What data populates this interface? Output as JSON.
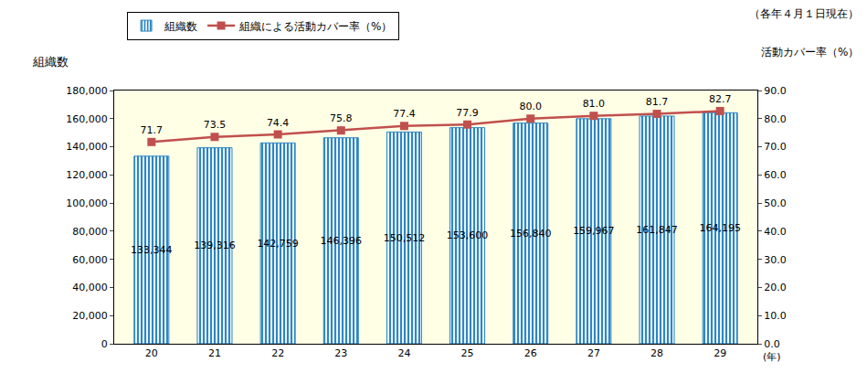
{
  "chart_data": {
    "type": "bar",
    "subtitle": "（各年４月１日現在）",
    "xlabel": "(年)",
    "ylabel": "組織数",
    "y2label": "活動カバー率（%）",
    "categories": [
      "20",
      "21",
      "22",
      "23",
      "24",
      "25",
      "26",
      "27",
      "28",
      "29"
    ],
    "series": [
      {
        "name": "組織数",
        "type": "bar",
        "color": "#2e86c1",
        "values": [
          133344,
          139316,
          142759,
          146396,
          150512,
          153600,
          156840,
          159967,
          161847,
          164195
        ],
        "value_labels": [
          "133,344",
          "139,316",
          "142,759",
          "146,396",
          "150,512",
          "153,600",
          "156,840",
          "159,967",
          "161,847",
          "164,195"
        ]
      },
      {
        "name": "組織による活動カバー率（%）",
        "type": "line",
        "axis": "y2",
        "color": "#c0504d",
        "marker": "square",
        "values": [
          71.7,
          73.5,
          74.4,
          75.8,
          77.4,
          77.9,
          80.0,
          81.0,
          81.7,
          82.7
        ],
        "value_labels": [
          "71.7",
          "73.5",
          "74.4",
          "75.8",
          "77.4",
          "77.9",
          "80.0",
          "81.0",
          "81.7",
          "82.7"
        ]
      }
    ],
    "ylim": [
      0,
      180000
    ],
    "yticks": [
      0,
      {
        "value": 20000,
        "label": "20,000"
      },
      {
        "value": 40000,
        "label": "40,000"
      },
      {
        "value": 60000,
        "label": "60,000"
      },
      {
        "value": 80000,
        "label": "80,000"
      },
      {
        "value": 100000,
        "label": "100,000"
      },
      {
        "value": 120000,
        "label": "120,000"
      },
      {
        "value": 140000,
        "label": "140,000"
      },
      {
        "value": 160000,
        "label": "160,000"
      },
      {
        "value": 180000,
        "label": "180,000"
      }
    ],
    "y2lim": [
      0,
      90
    ],
    "y2ticks": [
      {
        "value": 0,
        "label": "0.0"
      },
      {
        "value": 10,
        "label": "10.0"
      },
      {
        "value": 20,
        "label": "20.0"
      },
      {
        "value": 30,
        "label": "30.0"
      },
      {
        "value": 40,
        "label": "40.0"
      },
      {
        "value": 50,
        "label": "50.0"
      },
      {
        "value": 60,
        "label": "60.0"
      },
      {
        "value": 70,
        "label": "70.0"
      },
      {
        "value": 80,
        "label": "80.0"
      },
      {
        "value": 90,
        "label": "90.0"
      }
    ],
    "grid": false,
    "legend": "top",
    "data_labels": true
  }
}
